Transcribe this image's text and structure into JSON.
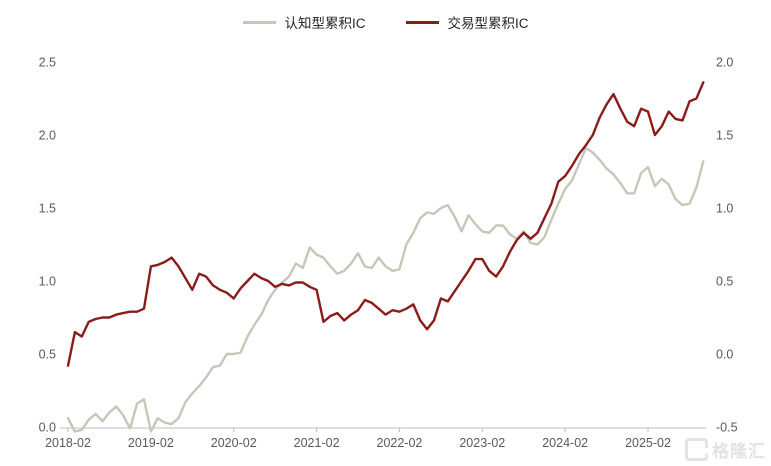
{
  "watermark": {
    "brand": "格隆汇"
  },
  "chart_data": {
    "type": "line",
    "title": "",
    "x_axis": {
      "frequency": "monthly",
      "start": "2018-02",
      "end": "2025-10",
      "tick_labels": [
        "2018-02",
        "2019-02",
        "2020-02",
        "2021-02",
        "2022-02",
        "2023-02",
        "2024-02",
        "2025-02"
      ]
    },
    "left_axis": {
      "min": 0.0,
      "max": 2.5,
      "ticks": [
        "2.5",
        "2.0",
        "1.5",
        "1.0",
        "0.5",
        "0.0"
      ]
    },
    "right_axis": {
      "min": -0.5,
      "max": 2.0,
      "ticks": [
        "2.0",
        "1.5",
        "1.0",
        "0.5",
        "0.0",
        "-0.5"
      ]
    },
    "grid": false,
    "legend_position": "top",
    "colors": {
      "axis_line": "#c9c9c9",
      "tick_text": "#595959",
      "legend_text": "#262626"
    },
    "series": [
      {
        "name": "认知型累积IC",
        "color": "#c6c7b9",
        "axis": "left",
        "values": [
          0.06,
          -0.03,
          -0.02,
          0.05,
          0.09,
          0.04,
          0.1,
          0.14,
          0.08,
          -0.01,
          0.16,
          0.19,
          -0.03,
          0.06,
          0.03,
          0.02,
          0.06,
          0.17,
          0.23,
          0.28,
          0.34,
          0.41,
          0.42,
          0.5,
          0.5,
          0.51,
          0.62,
          0.7,
          0.77,
          0.87,
          0.94,
          0.99,
          1.03,
          1.12,
          1.09,
          1.23,
          1.18,
          1.16,
          1.1,
          1.05,
          1.07,
          1.12,
          1.19,
          1.1,
          1.09,
          1.16,
          1.1,
          1.07,
          1.08,
          1.25,
          1.33,
          1.43,
          1.47,
          1.46,
          1.5,
          1.52,
          1.44,
          1.34,
          1.45,
          1.39,
          1.34,
          1.33,
          1.38,
          1.38,
          1.32,
          1.29,
          1.34,
          1.26,
          1.25,
          1.3,
          1.42,
          1.53,
          1.63,
          1.69,
          1.8,
          1.91,
          1.88,
          1.83,
          1.77,
          1.73,
          1.67,
          1.6,
          1.6,
          1.74,
          1.78,
          1.65,
          1.7,
          1.66,
          1.56,
          1.52,
          1.53,
          1.64,
          1.82
        ]
      },
      {
        "name": "交易型累积IC",
        "color": "#8b1c1c",
        "axis": "right",
        "values": [
          -0.08,
          0.15,
          0.12,
          0.22,
          0.24,
          0.25,
          0.25,
          0.27,
          0.28,
          0.29,
          0.29,
          0.31,
          0.6,
          0.61,
          0.63,
          0.66,
          0.6,
          0.52,
          0.44,
          0.55,
          0.53,
          0.47,
          0.44,
          0.42,
          0.38,
          0.45,
          0.5,
          0.55,
          0.52,
          0.5,
          0.46,
          0.48,
          0.47,
          0.49,
          0.49,
          0.46,
          0.44,
          0.22,
          0.26,
          0.28,
          0.23,
          0.27,
          0.3,
          0.37,
          0.35,
          0.31,
          0.27,
          0.3,
          0.29,
          0.31,
          0.34,
          0.23,
          0.17,
          0.23,
          0.38,
          0.36,
          0.43,
          0.5,
          0.57,
          0.65,
          0.65,
          0.57,
          0.53,
          0.6,
          0.7,
          0.78,
          0.83,
          0.79,
          0.83,
          0.93,
          1.03,
          1.18,
          1.22,
          1.29,
          1.37,
          1.43,
          1.5,
          1.62,
          1.71,
          1.78,
          1.68,
          1.59,
          1.56,
          1.68,
          1.66,
          1.5,
          1.56,
          1.66,
          1.61,
          1.6,
          1.73,
          1.75,
          1.86
        ]
      }
    ]
  }
}
